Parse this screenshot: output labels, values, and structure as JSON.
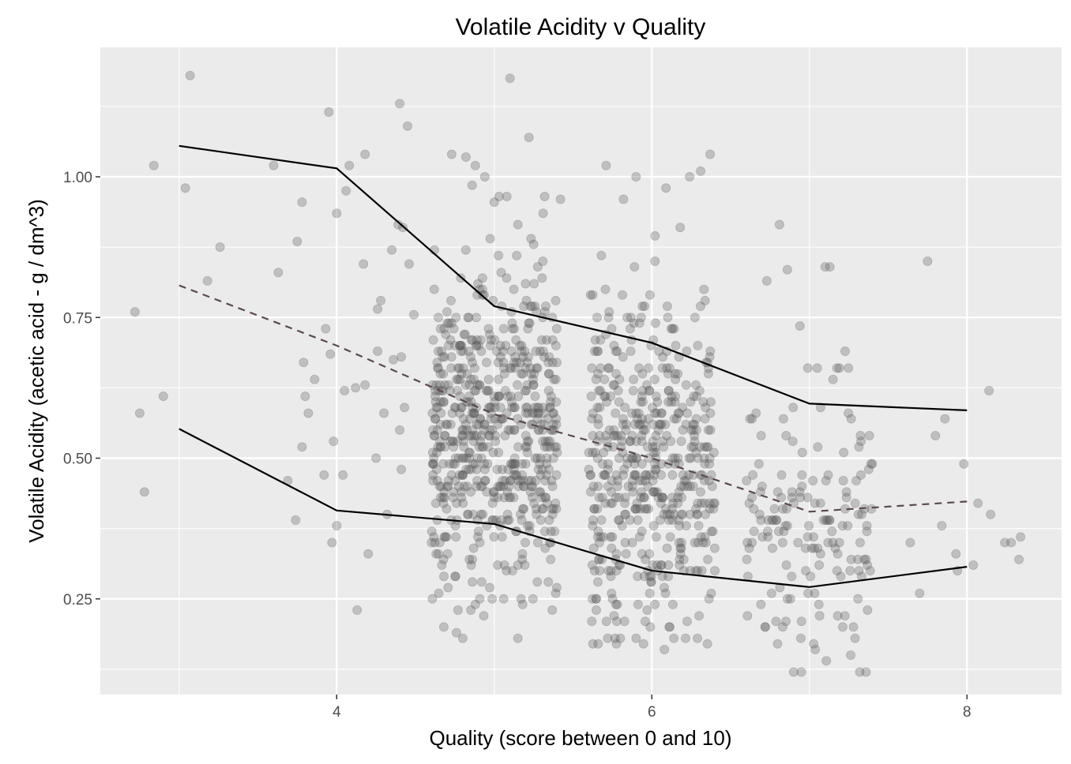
{
  "chart_data": {
    "type": "scatter",
    "title": "Volatile Acidity v Quality",
    "xlabel": "Quality (score between 0 and 10)",
    "ylabel": "Volatile Acidity (acetic acid - g / dm^3)",
    "xlim": [
      2.5,
      8.6
    ],
    "ylim": [
      0.08,
      1.23
    ],
    "x_ticks": [
      4,
      6,
      8
    ],
    "x_tick_labels": [
      "4",
      "6",
      "8"
    ],
    "y_ticks": [
      0.25,
      0.5,
      0.75,
      1.0
    ],
    "y_tick_labels": [
      "0.25",
      "0.50",
      "0.75",
      "1.00"
    ],
    "grid": true,
    "panel_color": "#ebebeb",
    "point_color": "#595959",
    "point_alpha": 0.3,
    "summary_lines": [
      {
        "line_style": "solid",
        "color": "#000000",
        "x": [
          3,
          4,
          5,
          6,
          7,
          8
        ],
        "y": [
          1.055,
          1.015,
          0.77,
          0.705,
          0.597,
          0.585
        ]
      },
      {
        "line_style": "dashed",
        "color": "#5a4a4e",
        "x": [
          3,
          4,
          5,
          6,
          7,
          8
        ],
        "y": [
          0.807,
          0.7,
          0.578,
          0.5,
          0.405,
          0.423
        ]
      },
      {
        "line_style": "solid",
        "color": "#000000",
        "x": [
          3,
          4,
          5,
          6,
          7,
          8
        ],
        "y": [
          0.552,
          0.407,
          0.383,
          0.3,
          0.271,
          0.307
        ]
      }
    ],
    "points": {
      "explicit": [
        [
          3.07,
          1.18
        ],
        [
          2.84,
          1.02
        ],
        [
          3.04,
          0.98
        ],
        [
          2.72,
          0.76
        ],
        [
          2.75,
          0.58
        ],
        [
          2.78,
          0.44
        ],
        [
          2.9,
          0.61
        ],
        [
          3.18,
          0.815
        ],
        [
          3.26,
          0.875
        ],
        [
          3.6,
          1.02
        ],
        [
          3.63,
          0.83
        ],
        [
          3.69,
          0.46
        ],
        [
          3.79,
          0.67
        ],
        [
          3.78,
          0.955
        ],
        [
          3.75,
          0.885
        ],
        [
          3.8,
          0.61
        ],
        [
          3.86,
          0.64
        ],
        [
          3.82,
          0.58
        ],
        [
          3.78,
          0.52
        ],
        [
          3.74,
          0.39
        ],
        [
          3.95,
          1.115
        ],
        [
          3.93,
          0.73
        ],
        [
          3.96,
          0.685
        ],
        [
          3.98,
          0.53
        ],
        [
          4.0,
          0.935
        ],
        [
          4.06,
          0.975
        ],
        [
          4.05,
          0.62
        ],
        [
          4.08,
          1.02
        ],
        [
          4.12,
          0.625
        ],
        [
          4.18,
          0.63
        ],
        [
          4.13,
          0.23
        ],
        [
          4.17,
          0.845
        ],
        [
          4.2,
          0.33
        ],
        [
          4.18,
          1.04
        ],
        [
          4.26,
          0.765
        ],
        [
          4.28,
          0.78
        ],
        [
          4.25,
          0.5
        ],
        [
          4.3,
          0.58
        ],
        [
          4.35,
          0.87
        ],
        [
          4.32,
          0.4
        ],
        [
          4.36,
          0.675
        ],
        [
          4.39,
          0.915
        ],
        [
          4.42,
          0.91
        ],
        [
          4.4,
          0.55
        ],
        [
          4.43,
          0.59
        ],
        [
          4.4,
          1.13
        ],
        [
          4.45,
          1.09
        ],
        [
          4.49,
          0.755
        ],
        [
          4.46,
          0.845
        ],
        [
          4.41,
          0.48
        ],
        [
          4.0,
          0.38
        ],
        [
          3.97,
          0.35
        ],
        [
          4.04,
          0.47
        ],
        [
          3.92,
          0.47
        ],
        [
          4.26,
          0.69
        ],
        [
          4.41,
          0.68
        ],
        [
          5.1,
          1.175
        ],
        [
          5.22,
          1.07
        ],
        [
          4.73,
          1.04
        ],
        [
          4.82,
          1.035
        ],
        [
          4.88,
          1.02
        ],
        [
          4.94,
          1.0
        ],
        [
          4.86,
          0.985
        ],
        [
          5.03,
          0.965
        ],
        [
          5.08,
          0.965
        ],
        [
          5.42,
          0.96
        ],
        [
          5.32,
          0.965
        ],
        [
          5.0,
          0.955
        ],
        [
          5.15,
          0.915
        ],
        [
          5.31,
          0.935
        ],
        [
          4.76,
          0.19
        ],
        [
          4.8,
          0.18
        ],
        [
          5.15,
          0.18
        ],
        [
          4.68,
          0.2
        ],
        [
          4.77,
          0.23
        ],
        [
          4.88,
          0.24
        ],
        [
          5.06,
          0.25
        ],
        [
          5.18,
          0.24
        ],
        [
          5.71,
          1.02
        ],
        [
          5.82,
          0.96
        ],
        [
          5.9,
          1.0
        ],
        [
          6.09,
          0.98
        ],
        [
          6.24,
          1.0
        ],
        [
          6.31,
          1.01
        ],
        [
          6.37,
          1.04
        ],
        [
          5.66,
          0.17
        ],
        [
          5.72,
          0.18
        ],
        [
          5.8,
          0.18
        ],
        [
          6.08,
          0.16
        ],
        [
          6.14,
          0.18
        ],
        [
          6.29,
          0.18
        ],
        [
          5.99,
          0.2
        ],
        [
          5.76,
          0.22
        ],
        [
          6.3,
          0.22
        ],
        [
          5.68,
          0.86
        ],
        [
          5.89,
          0.84
        ],
        [
          6.02,
          0.85
        ],
        [
          6.18,
          0.91
        ],
        [
          6.02,
          0.895
        ],
        [
          5.94,
          0.77
        ],
        [
          6.81,
          0.915
        ],
        [
          6.73,
          0.815
        ],
        [
          6.86,
          0.835
        ],
        [
          6.94,
          0.735
        ],
        [
          7.1,
          0.84
        ],
        [
          7.13,
          0.84
        ],
        [
          6.9,
          0.12
        ],
        [
          7.32,
          0.12
        ],
        [
          7.36,
          0.12
        ],
        [
          7.29,
          0.18
        ],
        [
          7.06,
          0.24
        ],
        [
          6.72,
          0.2
        ],
        [
          6.88,
          0.25
        ],
        [
          6.95,
          0.21
        ],
        [
          7.05,
          0.66
        ],
        [
          7.19,
          0.66
        ],
        [
          7.15,
          0.64
        ],
        [
          6.99,
          0.66
        ],
        [
          7.75,
          0.85
        ],
        [
          7.8,
          0.54
        ],
        [
          7.86,
          0.57
        ],
        [
          7.7,
          0.26
        ],
        [
          7.93,
          0.33
        ],
        [
          7.94,
          0.3
        ],
        [
          7.98,
          0.49
        ],
        [
          7.84,
          0.38
        ],
        [
          7.64,
          0.35
        ],
        [
          8.07,
          0.42
        ],
        [
          8.14,
          0.62
        ],
        [
          8.15,
          0.4
        ],
        [
          8.24,
          0.35
        ],
        [
          8.28,
          0.35
        ],
        [
          8.34,
          0.36
        ],
        [
          8.33,
          0.32
        ],
        [
          8.04,
          0.31
        ]
      ],
      "clusters": [
        {
          "x_center": 5,
          "x_spread": 0.4,
          "count": 600,
          "y_mode": 0.56,
          "y_sd": 0.14,
          "y_range": [
            0.22,
            0.9
          ]
        },
        {
          "x_center": 6,
          "x_spread": 0.4,
          "count": 480,
          "y_mode": 0.49,
          "y_sd": 0.15,
          "y_range": [
            0.16,
            0.8
          ]
        },
        {
          "x_center": 7,
          "x_spread": 0.4,
          "count": 150,
          "y_mode": 0.38,
          "y_sd": 0.12,
          "y_range": [
            0.12,
            0.72
          ]
        }
      ]
    }
  }
}
